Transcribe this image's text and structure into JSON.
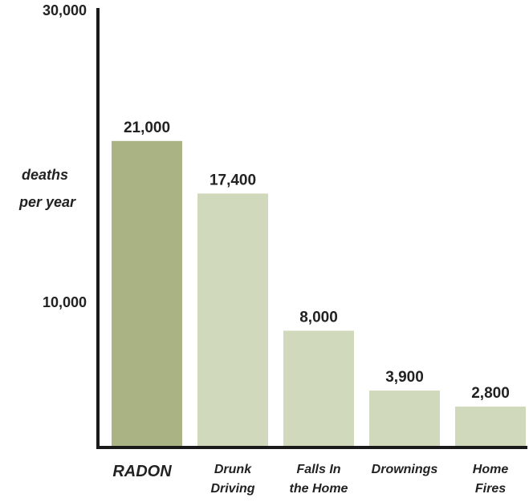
{
  "chart_data": {
    "type": "bar",
    "title": "",
    "xlabel": "",
    "ylabel": [
      "deaths",
      "per year"
    ],
    "ylim": [
      0,
      30000
    ],
    "yticks": [
      {
        "value": 10000,
        "label": "10,000"
      },
      {
        "value": 30000,
        "label": "30,000"
      }
    ],
    "grid": false,
    "legend": "none",
    "categories": [
      {
        "lines": [
          "RADON"
        ],
        "highlight": true
      },
      {
        "lines": [
          "Drunk",
          "Driving"
        ],
        "highlight": false
      },
      {
        "lines": [
          "Falls In",
          "the Home"
        ],
        "highlight": false
      },
      {
        "lines": [
          "Drownings"
        ],
        "highlight": false
      },
      {
        "lines": [
          "Home",
          "Fires"
        ],
        "highlight": false
      }
    ],
    "values": [
      21000,
      17400,
      8000,
      3900,
      2800
    ],
    "value_labels": [
      "21,000",
      "17,400",
      "8,000",
      "3,900",
      "2,800"
    ],
    "colors": {
      "highlight": "#a9b384",
      "normal": "#d1d9bc",
      "axis": "#1a1a1a",
      "text": "#222222"
    }
  }
}
